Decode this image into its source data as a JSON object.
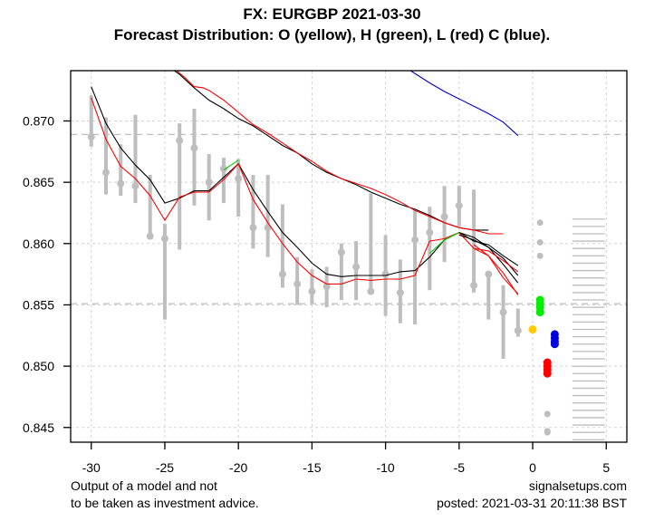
{
  "chart_data": {
    "type": "line",
    "title": "FX: EURGBP 2021-03-30",
    "subtitle": "Forecast Distribution: O (yellow), H (green), L (red) C (blue).",
    "xlabel": "",
    "ylabel": "",
    "xlim": [
      -31.4,
      6.4
    ],
    "ylim": [
      0.8438,
      0.8741
    ],
    "grid": true,
    "x_ticks": [
      -30,
      -25,
      -20,
      -15,
      -10,
      -5,
      0,
      5
    ],
    "x_tick_labels": [
      "-30",
      "-25",
      "-20",
      "-15",
      "-10",
      "-5",
      "0",
      "5"
    ],
    "y_ticks": [
      0.845,
      0.85,
      0.855,
      0.86,
      0.865,
      0.87
    ],
    "y_tick_labels": [
      "0.845",
      "0.850",
      "0.855",
      "0.860",
      "0.865",
      "0.870"
    ],
    "reference_lines": [
      0.8689,
      0.8551
    ],
    "price_bars": {
      "x": [
        -30,
        -29,
        -28,
        -27,
        -26,
        -25,
        -24,
        -23,
        -22,
        -21,
        -20,
        -19,
        -18,
        -17,
        -16,
        -15,
        -14,
        -13,
        -12,
        -11,
        -10,
        -9,
        -8,
        -7,
        -6,
        -5,
        -4,
        -3,
        -2,
        -1
      ],
      "high": [
        0.8721,
        0.8703,
        0.8681,
        0.8705,
        0.8656,
        0.8616,
        0.8698,
        0.871,
        0.8673,
        0.867,
        0.8669,
        0.8656,
        0.8656,
        0.8632,
        0.8589,
        0.8579,
        0.8581,
        0.86,
        0.8602,
        0.8641,
        0.8607,
        0.8587,
        0.8627,
        0.863,
        0.8647,
        0.8647,
        0.8644,
        0.8577,
        0.8566,
        0.8547
      ],
      "low": [
        0.8679,
        0.864,
        0.8639,
        0.8633,
        0.8606,
        0.8538,
        0.8595,
        0.8631,
        0.8619,
        0.8633,
        0.8622,
        0.8596,
        0.8589,
        0.8564,
        0.855,
        0.8551,
        0.8548,
        0.8554,
        0.8554,
        0.8561,
        0.8541,
        0.8535,
        0.8534,
        0.8562,
        0.8585,
        0.8614,
        0.856,
        0.8538,
        0.8506,
        0.8524
      ],
      "close": [
        0.8687,
        0.8658,
        0.8649,
        0.8647,
        0.8606,
        0.8604,
        0.8684,
        0.8678,
        0.865,
        0.8661,
        0.8653,
        0.8613,
        0.8613,
        0.8575,
        0.8567,
        0.8561,
        0.8565,
        0.8593,
        0.8581,
        0.8561,
        0.8575,
        0.856,
        0.8603,
        0.8609,
        0.8622,
        0.8631,
        0.8566,
        0.8575,
        0.8544,
        0.8529
      ]
    },
    "series": [
      {
        "name": "upper-black",
        "color": "#000000",
        "x": [
          -25.2,
          -24,
          -23,
          -22,
          -21,
          -20,
          -19,
          -18,
          -17,
          -16,
          -15,
          -14,
          -13,
          -12,
          -11,
          -10,
          -9,
          -8,
          -7,
          -6,
          -5,
          -4,
          -3,
          -2,
          -1
        ],
        "y": [
          0.8748,
          0.8738,
          0.8727,
          0.8717,
          0.871,
          0.8702,
          0.8696,
          0.8688,
          0.868,
          0.8674,
          0.8665,
          0.8658,
          0.8653,
          0.8648,
          0.8642,
          0.8637,
          0.8632,
          0.8628,
          0.8623,
          0.8617,
          0.8613,
          0.8611,
          0.8611,
          null,
          null
        ]
      },
      {
        "name": "upper-red",
        "color": "#ff0000",
        "x": [
          -24.2,
          -23.6,
          -23,
          -22.4,
          -22,
          -21,
          -20,
          -19,
          -18,
          -17,
          -16,
          -15,
          -14,
          -13,
          -12,
          -11,
          -10,
          -9,
          -8,
          -7,
          -6,
          -5,
          -4,
          -3,
          -2,
          -1
        ],
        "y": [
          0.8741,
          0.8735,
          0.8728,
          0.8727,
          0.8725,
          0.8717,
          0.8707,
          0.8697,
          0.869,
          0.8682,
          0.8674,
          0.8667,
          0.8659,
          0.8653,
          0.8649,
          0.8645,
          0.864,
          0.8634,
          0.8627,
          0.8622,
          0.8617,
          0.8613,
          0.8611,
          0.8608,
          0.8608,
          null
        ]
      },
      {
        "name": "blue-forecast",
        "color": "#0000cc",
        "x": [
          -8.3,
          -7,
          -6,
          -5,
          -4,
          -3,
          -2,
          -1
        ],
        "y": [
          0.8741,
          0.8731,
          0.8724,
          0.8718,
          0.8712,
          0.8706,
          0.8699,
          0.8688
        ]
      },
      {
        "name": "lower-black",
        "color": "#000000",
        "x": [
          -30,
          -29,
          -28,
          -27,
          -26,
          -25,
          -24,
          -23,
          -22,
          -21,
          -20,
          -19,
          -18,
          -17,
          -16,
          -15,
          -14,
          -13,
          -12,
          -11,
          -10,
          -9,
          -8,
          -7,
          -6,
          -5,
          -4,
          -3,
          -2,
          -1
        ],
        "y": [
          0.8728,
          0.8698,
          0.8678,
          0.8664,
          0.8652,
          0.8633,
          0.8637,
          0.8643,
          0.8643,
          0.8654,
          0.8665,
          0.8644,
          0.8626,
          0.8609,
          0.8597,
          0.8584,
          0.8575,
          0.8573,
          0.8574,
          0.8574,
          0.8574,
          0.8577,
          0.8578,
          0.8589,
          0.8603,
          0.8609,
          0.8602,
          0.8599,
          0.859,
          0.8582
        ]
      },
      {
        "name": "lower-red",
        "color": "#ff0000",
        "x": [
          -30,
          -29,
          -28,
          -27,
          -26,
          -25,
          -24,
          -23,
          -22,
          -21,
          -20,
          -19,
          -18,
          -17,
          -16,
          -15,
          -14,
          -13,
          -12,
          -11,
          -10,
          -9,
          -8,
          -7,
          -6,
          -5,
          -4,
          -3,
          -2,
          -1
        ],
        "y": [
          0.8719,
          0.8685,
          0.8663,
          0.8653,
          0.8639,
          0.8619,
          0.8638,
          0.8642,
          0.8642,
          0.8652,
          0.8665,
          0.8636,
          0.8617,
          0.86,
          0.8585,
          0.8574,
          0.8567,
          0.8567,
          0.8571,
          0.857,
          0.8571,
          0.8571,
          0.8574,
          0.8602,
          0.8604,
          0.8609,
          0.8596,
          0.859,
          0.8576,
          0.8558
        ]
      },
      {
        "name": "green-segments",
        "color": "#00cc00",
        "x": [
          -21,
          -20,
          null,
          -7,
          -6,
          -5
        ],
        "y": [
          0.866,
          0.8668,
          null,
          0.8592,
          0.8603,
          0.8609
        ]
      },
      {
        "name": "fan-black-1",
        "color": "#000000",
        "x": [
          -5,
          -4,
          -3,
          -2,
          -1
        ],
        "y": [
          0.8609,
          0.8605,
          0.8597,
          0.8588,
          0.8574
        ]
      },
      {
        "name": "fan-black-2",
        "color": "#000000",
        "x": [
          -5,
          -4,
          -3,
          -2,
          -1
        ],
        "y": [
          0.8607,
          0.8603,
          0.8597,
          0.8583,
          0.8568
        ]
      },
      {
        "name": "fan-red-1",
        "color": "#ff0000",
        "x": [
          -4,
          -3,
          -2,
          -1
        ],
        "y": [
          0.8596,
          0.8594,
          0.8586,
          0.8577
        ]
      },
      {
        "name": "fan-red-2",
        "color": "#ff0000",
        "x": [
          -4,
          -3,
          -2,
          -1
        ],
        "y": [
          0.8599,
          0.859,
          0.8572,
          0.8559
        ]
      }
    ],
    "forecast_points": [
      {
        "label": "O",
        "color": "#ffcc00",
        "x": 0.0,
        "y": [
          0.853
        ]
      },
      {
        "label": "H",
        "color": "#00ee00",
        "x": 0.5,
        "y": [
          0.8554,
          0.8551,
          0.8548,
          0.8544
        ]
      },
      {
        "label": "L",
        "color": "#ff0000",
        "x": 1.0,
        "y": [
          0.8503,
          0.85,
          0.8497,
          0.8494
        ]
      },
      {
        "label": "C",
        "color": "#0000dd",
        "x": 1.5,
        "y": [
          0.8526,
          0.8523,
          0.852,
          0.8518
        ]
      },
      {
        "label": "gray-high",
        "color": "#bebebe",
        "x": 0.5,
        "y": [
          0.8617,
          0.8601,
          0.859
        ]
      },
      {
        "label": "gray-low",
        "color": "#bebebe",
        "x": 1.0,
        "y": [
          0.8461,
          0.8447,
          0.8446
        ]
      }
    ],
    "level_ticks": {
      "x_from": 2.7,
      "x_to": 4.9,
      "y": [
        0.862,
        0.8617,
        0.8614,
        0.8611,
        0.8608,
        0.8605,
        0.8602,
        0.8599,
        0.8596,
        0.8593,
        0.859,
        0.8587,
        0.8584,
        0.8581,
        0.8578,
        0.8575,
        0.8572,
        0.8569,
        0.8566,
        0.8563,
        0.856,
        0.8557,
        0.8554,
        0.8551,
        0.8548,
        0.8545,
        0.8542,
        0.8539,
        0.8536,
        0.8533,
        0.853,
        0.8527,
        0.8524,
        0.8521,
        0.8518,
        0.8515,
        0.8512,
        0.8509,
        0.8506,
        0.8503,
        0.85,
        0.8497,
        0.8494,
        0.8491,
        0.8488,
        0.8485,
        0.8482,
        0.8479,
        0.8476,
        0.8473,
        0.847,
        0.8467,
        0.8464,
        0.8461,
        0.8458,
        0.8455,
        0.8452,
        0.8449,
        0.8446,
        0.8443,
        0.844
      ]
    }
  },
  "footer": {
    "disclaimer_line1": "Output of a model and not",
    "disclaimer_line2": "to be taken as investment advice.",
    "site": "signalsetups.com",
    "posted": "posted: 2021-03-31 20:11:38 BST"
  }
}
